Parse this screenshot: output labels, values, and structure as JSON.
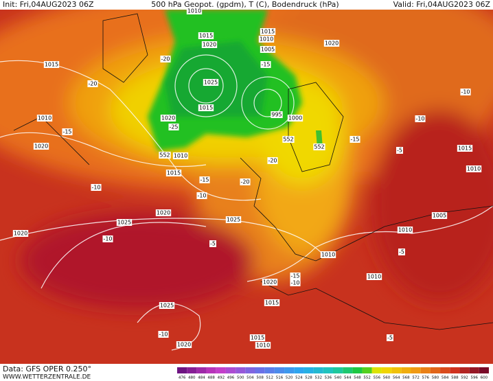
{
  "header": {
    "init": "Init: Fri,04AUG2023 06Z",
    "title": "500 hPa Geopot. (gpdm), T (C), Bodendruck (hPa)",
    "valid": "Valid: Fri,04AUG2023 06Z"
  },
  "footer": {
    "data": "Data: GFS OPER 0.250°",
    "site": "WWW.WETTERZENTRALE.DE"
  },
  "legend": {
    "labels": [
      476,
      480,
      484,
      488,
      492,
      496,
      500,
      504,
      508,
      512,
      516,
      520,
      524,
      528,
      532,
      536,
      540,
      544,
      548,
      552,
      556,
      560,
      564,
      568,
      572,
      576,
      580,
      584,
      588,
      592,
      596,
      600
    ]
  },
  "map_labels": [
    "1015",
    "1010",
    "1020",
    "-20",
    "-15",
    "-10",
    "1020",
    "-10",
    "1025",
    "1020",
    "1025",
    "-5",
    "1025",
    "-10",
    "1020",
    "1015",
    "1010",
    "1015",
    "1020",
    "-15",
    "-10",
    "1010",
    "1010",
    "-5",
    "1010",
    "1005",
    "1010",
    "1015",
    "-5",
    "-10",
    "-10",
    "1020",
    "-15",
    "552",
    "552",
    "1000",
    "995",
    "1015",
    "1025",
    "1020",
    "1015",
    "1010",
    "1015",
    "1010",
    "1005",
    "-15",
    "-20",
    "1020",
    "-25",
    "552",
    "1010",
    "1015",
    "-15",
    "-10",
    "-20",
    "-20",
    "-5"
  ]
}
